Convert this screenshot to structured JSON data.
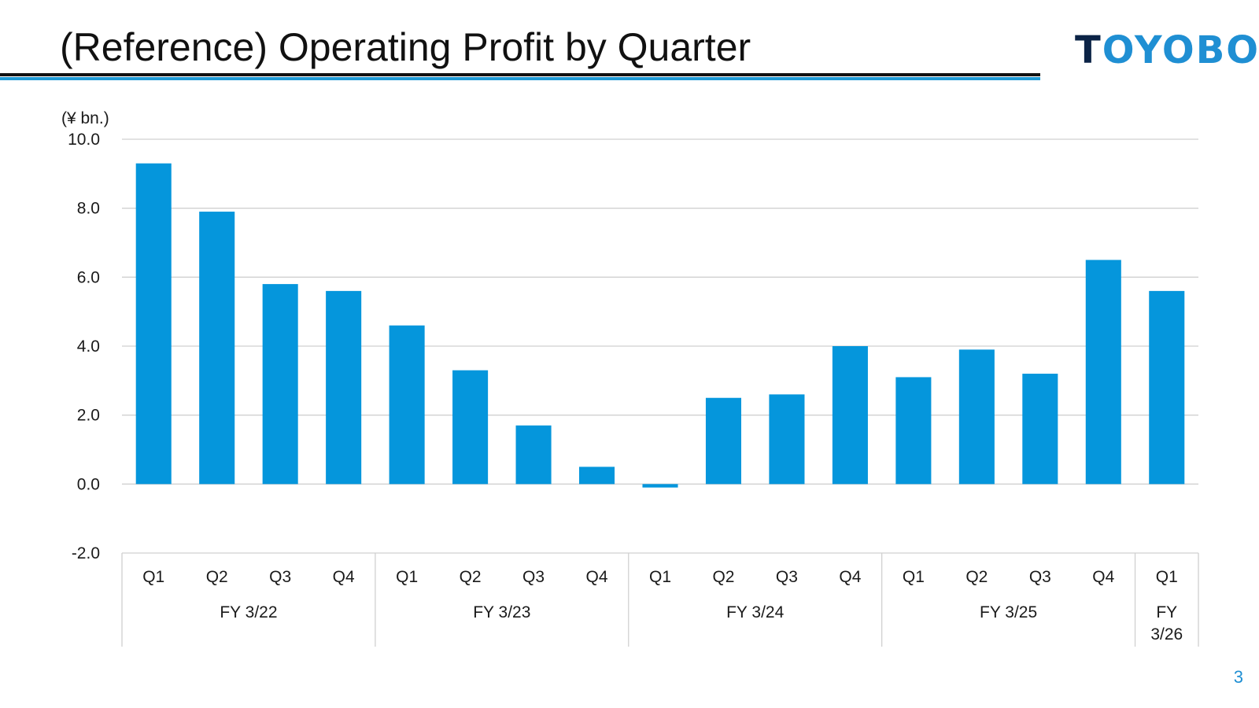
{
  "header": {
    "title": "(Reference) Operating Profit by Quarter",
    "logo_text": "TOYOBO",
    "page_number": "3"
  },
  "colors": {
    "bar": "#0596DC",
    "accent": "#1f9ad6",
    "gridline": "#d0d0d0"
  },
  "chart_data": {
    "type": "bar",
    "title": "(Reference) Operating Profit by Quarter",
    "unit_label": "(¥ bn.)",
    "xlabel": "",
    "ylabel": "(¥ bn.)",
    "ylim": [
      -2.0,
      10.0
    ],
    "yticks": [
      10.0,
      8.0,
      6.0,
      4.0,
      2.0,
      0.0,
      -2.0
    ],
    "ytick_labels": [
      "10.0",
      "8.0",
      "6.0",
      "4.0",
      "2.0",
      "0.0",
      "-2.0"
    ],
    "grid": true,
    "categories": [
      "Q1",
      "Q2",
      "Q3",
      "Q4",
      "Q1",
      "Q2",
      "Q3",
      "Q4",
      "Q1",
      "Q2",
      "Q3",
      "Q4",
      "Q1",
      "Q2",
      "Q3",
      "Q4",
      "Q1"
    ],
    "groups": [
      {
        "label": "FY 3/22",
        "count": 4
      },
      {
        "label": "FY 3/23",
        "count": 4
      },
      {
        "label": "FY 3/24",
        "count": 4
      },
      {
        "label": "FY 3/25",
        "count": 4
      },
      {
        "label": "FY\n3/26",
        "count": 1
      }
    ],
    "series": [
      {
        "name": "Operating Profit",
        "values": [
          9.3,
          7.9,
          5.8,
          5.6,
          4.6,
          3.3,
          1.7,
          0.5,
          -0.1,
          2.5,
          2.6,
          4.0,
          3.1,
          3.9,
          3.2,
          6.5,
          5.6
        ]
      }
    ]
  }
}
